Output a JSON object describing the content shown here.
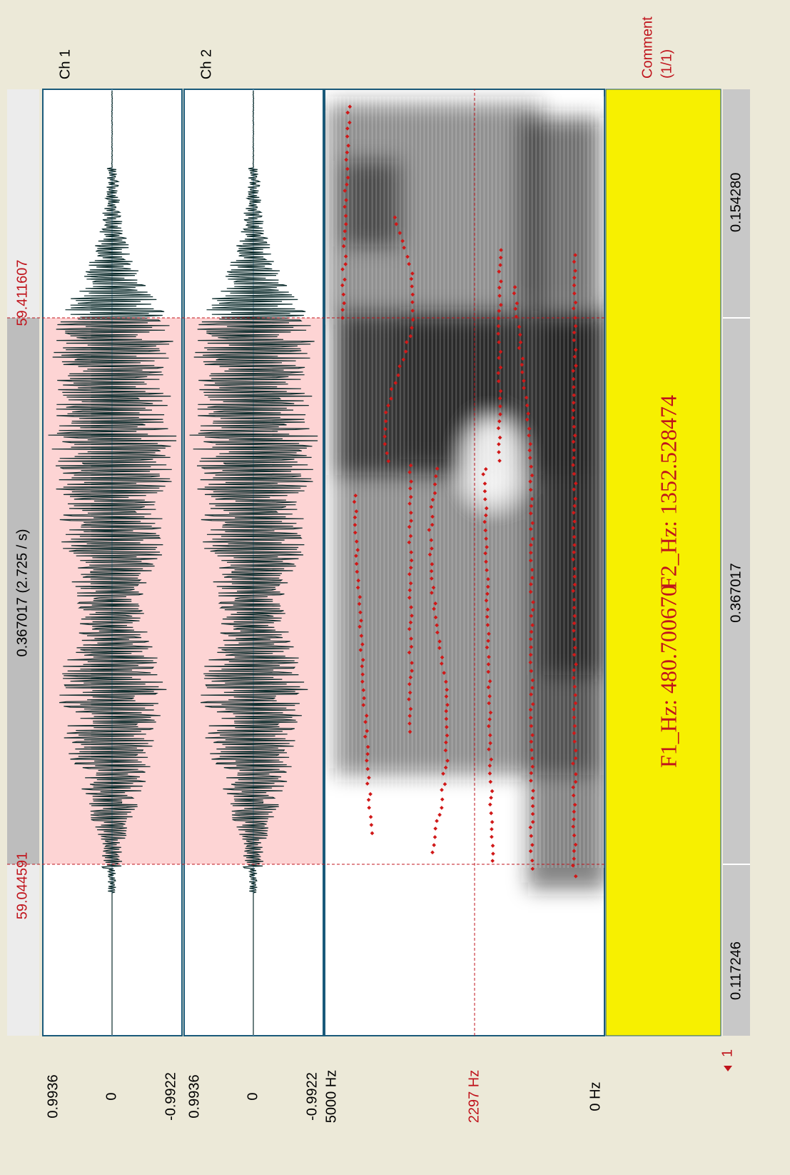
{
  "time_ruler": {
    "start": "59.044591",
    "center": "0.367017 (2.725 / s)",
    "end": "59.411607"
  },
  "channels": [
    {
      "label": "Ch 1",
      "max": "0.9936",
      "zero": "0",
      "min": "-0.9922"
    },
    {
      "label": "Ch 2",
      "max": "0.9936",
      "zero": "0",
      "min": "-0.9922"
    }
  ],
  "spectrogram": {
    "max": "5000 Hz",
    "cursor": "2297 Hz",
    "min": "0 Hz"
  },
  "comment": {
    "label": "Comment",
    "count": "(1/1)",
    "tier": "1",
    "f1": "F1_Hz: 480.700670",
    "f2": "F2_Hz: 1352.528474"
  },
  "bottom_ruler": [
    "0.117246",
    "0.367017",
    "0.154280"
  ]
}
